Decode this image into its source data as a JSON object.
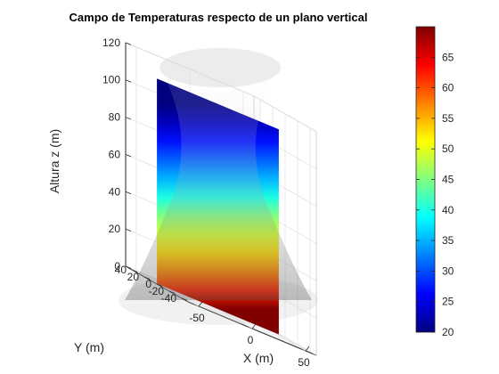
{
  "chart_data": {
    "type": "heatmap",
    "title": "Campo de Temperaturas respecto de un plano vertical",
    "xlabel": "X (m)",
    "ylabel": "Y (m)",
    "zlabel": "Altura z (m)",
    "x_ticks": [
      -50,
      0,
      50
    ],
    "y_ticks": [
      -40,
      -20,
      0,
      20,
      40
    ],
    "z_ticks": [
      0,
      20,
      40,
      60,
      80,
      100,
      120
    ],
    "xlim": [
      -60,
      60
    ],
    "ylim": [
      -50,
      50
    ],
    "zlim": [
      0,
      120
    ],
    "colorbar": {
      "colormap": "jet",
      "range": [
        20,
        70
      ],
      "ticks": [
        20,
        25,
        30,
        35,
        40,
        45,
        50,
        55,
        60,
        65
      ]
    },
    "temperature_profile": {
      "z": [
        0,
        10,
        20,
        30,
        40,
        50,
        60,
        70,
        80,
        90,
        100,
        110
      ],
      "temperature": [
        70,
        62,
        57,
        53,
        49,
        45,
        40,
        35,
        31,
        27,
        23,
        20
      ]
    },
    "grid": true
  }
}
